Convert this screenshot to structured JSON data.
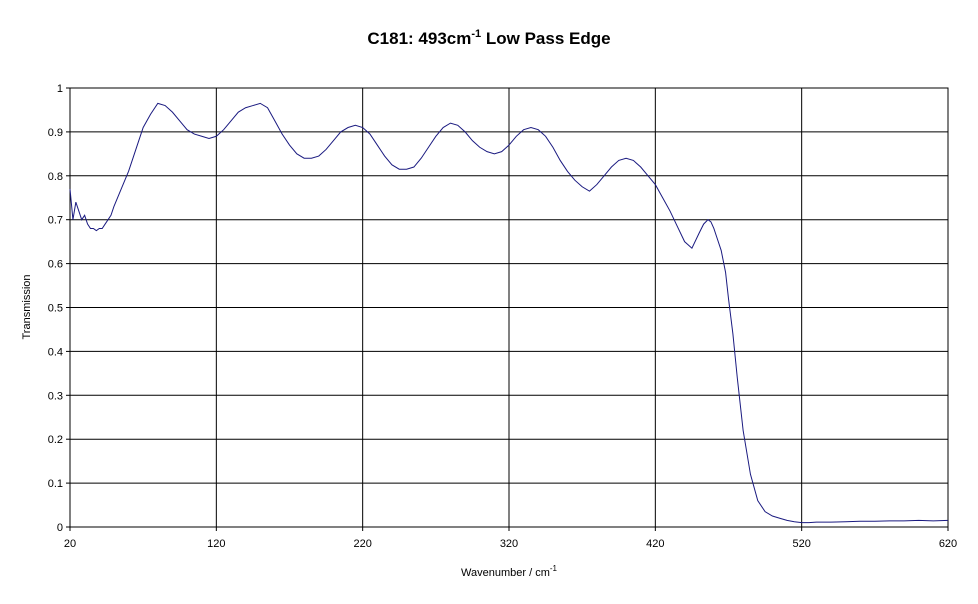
{
  "chart_data": {
    "type": "line",
    "title": "C181: 493cm",
    "title_superscript": "-1",
    "title_suffix": " Low Pass Edge",
    "xlabel": "Wavenumber / cm",
    "xlabel_superscript": "-1",
    "ylabel": "Transmission",
    "xlim": [
      20,
      620
    ],
    "ylim": [
      0,
      1
    ],
    "x_ticks": [
      20,
      120,
      220,
      320,
      420,
      520,
      620
    ],
    "y_ticks": [
      0,
      0.1,
      0.2,
      0.3,
      0.4,
      0.5,
      0.6,
      0.7,
      0.8,
      0.9,
      1
    ],
    "y_tick_labels": [
      "0",
      "0.1",
      "0.2",
      "0.3",
      "0.4",
      "0.5",
      "0.6",
      "0.7",
      "0.8",
      "0.9",
      "1"
    ],
    "grid": true,
    "line_color": "#1a1a80",
    "series": [
      {
        "x": [
          20,
          22,
          24,
          26,
          28,
          30,
          32,
          34,
          36,
          38,
          40,
          42,
          44,
          46,
          48,
          50,
          55,
          60,
          65,
          70,
          75,
          80,
          85,
          90,
          95,
          100,
          105,
          110,
          115,
          120,
          125,
          130,
          135,
          140,
          145,
          150,
          155,
          160,
          165,
          170,
          175,
          180,
          185,
          190,
          195,
          200,
          205,
          210,
          215,
          220,
          225,
          230,
          235,
          240,
          245,
          250,
          255,
          260,
          265,
          270,
          275,
          280,
          285,
          290,
          295,
          300,
          305,
          310,
          315,
          320,
          325,
          330,
          335,
          340,
          345,
          350,
          355,
          360,
          365,
          370,
          375,
          380,
          385,
          390,
          395,
          400,
          405,
          410,
          415,
          420,
          425,
          430,
          435,
          440,
          445,
          450,
          453,
          456,
          458,
          460,
          462,
          465,
          468,
          470,
          473,
          476,
          480,
          485,
          490,
          495,
          500,
          505,
          510,
          515,
          520,
          525,
          530,
          540,
          550,
          560,
          570,
          580,
          590,
          600,
          610,
          620
        ],
        "y": [
          0.77,
          0.7,
          0.74,
          0.72,
          0.7,
          0.71,
          0.69,
          0.68,
          0.68,
          0.675,
          0.68,
          0.68,
          0.69,
          0.7,
          0.71,
          0.73,
          0.77,
          0.81,
          0.86,
          0.91,
          0.94,
          0.965,
          0.96,
          0.945,
          0.925,
          0.905,
          0.895,
          0.89,
          0.885,
          0.89,
          0.905,
          0.925,
          0.945,
          0.955,
          0.96,
          0.965,
          0.955,
          0.925,
          0.895,
          0.87,
          0.85,
          0.84,
          0.84,
          0.845,
          0.86,
          0.88,
          0.9,
          0.91,
          0.915,
          0.91,
          0.895,
          0.87,
          0.845,
          0.825,
          0.815,
          0.815,
          0.82,
          0.84,
          0.865,
          0.89,
          0.91,
          0.92,
          0.915,
          0.9,
          0.88,
          0.865,
          0.855,
          0.85,
          0.855,
          0.87,
          0.89,
          0.905,
          0.91,
          0.905,
          0.89,
          0.865,
          0.835,
          0.81,
          0.79,
          0.775,
          0.765,
          0.78,
          0.8,
          0.82,
          0.835,
          0.84,
          0.835,
          0.82,
          0.8,
          0.78,
          0.75,
          0.72,
          0.685,
          0.65,
          0.635,
          0.67,
          0.69,
          0.7,
          0.695,
          0.68,
          0.66,
          0.63,
          0.58,
          0.52,
          0.44,
          0.34,
          0.22,
          0.12,
          0.06,
          0.035,
          0.025,
          0.02,
          0.015,
          0.012,
          0.01,
          0.01,
          0.011,
          0.011,
          0.012,
          0.013,
          0.013,
          0.014,
          0.014,
          0.015,
          0.014,
          0.015
        ]
      }
    ]
  }
}
